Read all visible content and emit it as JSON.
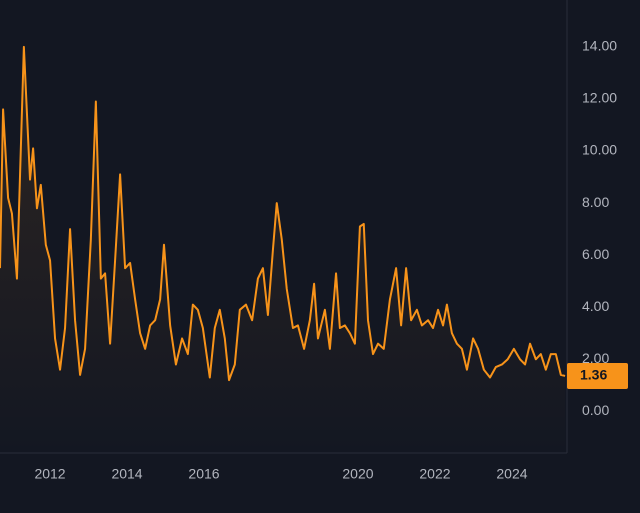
{
  "chart_data": {
    "type": "line",
    "x": [
      2010.7,
      2010.78,
      2010.91,
      2011.01,
      2011.14,
      2011.32,
      2011.48,
      2011.56,
      2011.66,
      2011.76,
      2011.89,
      2012.0,
      2012.13,
      2012.26,
      2012.39,
      2012.52,
      2012.65,
      2012.78,
      2012.91,
      2013.06,
      2013.19,
      2013.32,
      2013.43,
      2013.56,
      2013.69,
      2013.82,
      2013.95,
      2014.08,
      2014.21,
      2014.34,
      2014.47,
      2014.6,
      2014.73,
      2014.86,
      2014.96,
      2015.12,
      2015.27,
      2015.43,
      2015.58,
      2015.71,
      2015.84,
      2015.97,
      2016.15,
      2016.28,
      2016.41,
      2016.54,
      2016.65,
      2016.8,
      2016.93,
      2017.09,
      2017.25,
      2017.4,
      2017.53,
      2017.66,
      2017.79,
      2017.89,
      2018.02,
      2018.15,
      2018.31,
      2018.44,
      2018.6,
      2018.75,
      2018.86,
      2018.96,
      2019.14,
      2019.27,
      2019.43,
      2019.53,
      2019.66,
      2019.79,
      2019.92,
      2020.05,
      2020.15,
      2020.26,
      2020.39,
      2020.52,
      2020.67,
      2020.83,
      2020.99,
      2021.12,
      2021.25,
      2021.38,
      2021.53,
      2021.66,
      2021.82,
      2021.95,
      2022.08,
      2022.21,
      2022.31,
      2022.44,
      2022.57,
      2022.7,
      2022.83,
      2022.99,
      2023.12,
      2023.27,
      2023.43,
      2023.58,
      2023.74,
      2023.89,
      2024.05,
      2024.21,
      2024.34,
      2024.47,
      2024.62,
      2024.75,
      2024.88,
      2025.01,
      2025.14,
      2025.27,
      2025.38
    ],
    "series": [
      {
        "color": "#f7931a",
        "values": [
          5.5,
          11.6,
          8.2,
          7.6,
          5.1,
          14.0,
          8.9,
          10.1,
          7.8,
          8.7,
          6.4,
          5.8,
          2.8,
          1.6,
          3.2,
          7.0,
          3.5,
          1.4,
          2.4,
          6.6,
          11.9,
          5.1,
          5.3,
          2.6,
          5.8,
          9.1,
          5.5,
          5.7,
          4.3,
          3.0,
          2.4,
          3.3,
          3.5,
          4.3,
          6.4,
          3.3,
          1.8,
          2.8,
          2.2,
          4.1,
          3.9,
          3.2,
          1.3,
          3.2,
          3.9,
          2.8,
          1.2,
          1.8,
          3.9,
          4.1,
          3.5,
          5.1,
          5.5,
          3.7,
          6.2,
          8.0,
          6.6,
          4.7,
          3.2,
          3.3,
          2.4,
          3.5,
          4.9,
          2.8,
          3.9,
          2.4,
          5.3,
          3.2,
          3.3,
          3.0,
          2.6,
          7.1,
          7.2,
          3.5,
          2.2,
          2.6,
          2.4,
          4.3,
          5.5,
          3.3,
          5.5,
          3.5,
          3.9,
          3.3,
          3.5,
          3.2,
          3.9,
          3.3,
          4.1,
          3.0,
          2.6,
          2.4,
          1.6,
          2.8,
          2.4,
          1.6,
          1.3,
          1.7,
          1.8,
          2.0,
          2.4,
          2.0,
          1.8,
          2.6,
          2.0,
          2.2,
          1.6,
          2.2,
          2.2,
          1.4,
          1.36
        ]
      }
    ],
    "xlim": [
      2010.7,
      2025.43
    ],
    "xticks": [
      2012,
      2014,
      2016,
      2020,
      2022,
      2024
    ],
    "ylim": [
      -1.6,
      15.8
    ],
    "yticks": [
      {
        "value": 0,
        "label": "0.00"
      },
      {
        "value": 2,
        "label": "2.00"
      },
      {
        "value": 4,
        "label": "4.00"
      },
      {
        "value": 6,
        "label": "6.00"
      },
      {
        "value": 8,
        "label": "8.00"
      },
      {
        "value": 10,
        "label": "10.00"
      },
      {
        "value": 12,
        "label": "12.00"
      },
      {
        "value": 14,
        "label": "14.00"
      }
    ],
    "grid": false
  }
}
